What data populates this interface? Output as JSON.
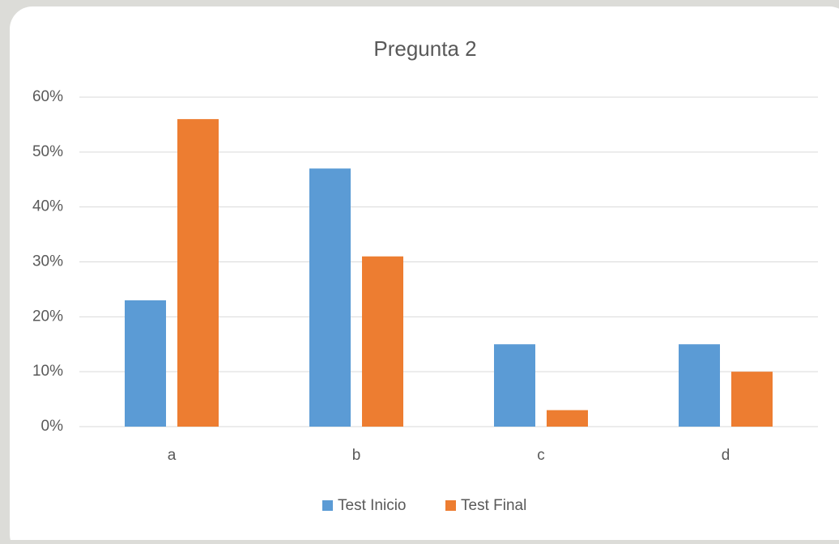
{
  "chart_data": {
    "type": "bar",
    "title": "Pregunta 2",
    "categories": [
      "a",
      "b",
      "c",
      "d"
    ],
    "series": [
      {
        "name": "Test Inicio",
        "color": "#5b9bd5",
        "values": [
          23,
          47,
          15,
          15
        ]
      },
      {
        "name": "Test Final",
        "color": "#ed7d31",
        "values": [
          56,
          31,
          3,
          10
        ]
      }
    ],
    "ylim": [
      0,
      60
    ],
    "yticks": [
      {
        "value": 0,
        "label": "0%"
      },
      {
        "value": 10,
        "label": "10%"
      },
      {
        "value": 20,
        "label": "20%"
      },
      {
        "value": 30,
        "label": "30%"
      },
      {
        "value": 40,
        "label": "40%"
      },
      {
        "value": 50,
        "label": "50%"
      },
      {
        "value": 60,
        "label": "60%"
      }
    ],
    "grid": true,
    "legend": "bottom"
  }
}
